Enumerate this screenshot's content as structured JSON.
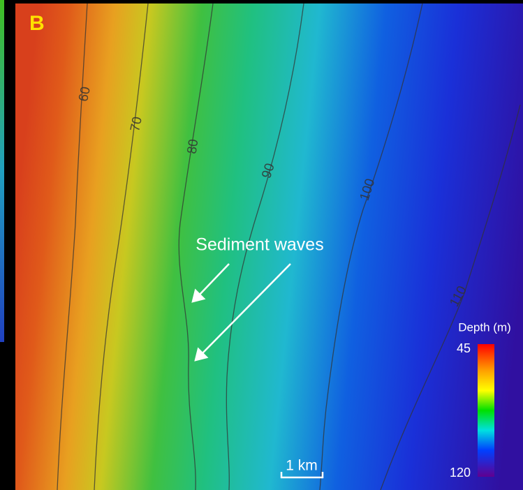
{
  "panel_label": "B",
  "contours": [
    {
      "label": 60
    },
    {
      "label": 70
    },
    {
      "label": 80
    },
    {
      "label": 90
    },
    {
      "label": 100
    },
    {
      "label": 110
    }
  ],
  "annotation": "Sediment waves",
  "scale_bar": "1 km",
  "legend": {
    "title": "Depth (m)",
    "min": 45,
    "max": 120
  }
}
